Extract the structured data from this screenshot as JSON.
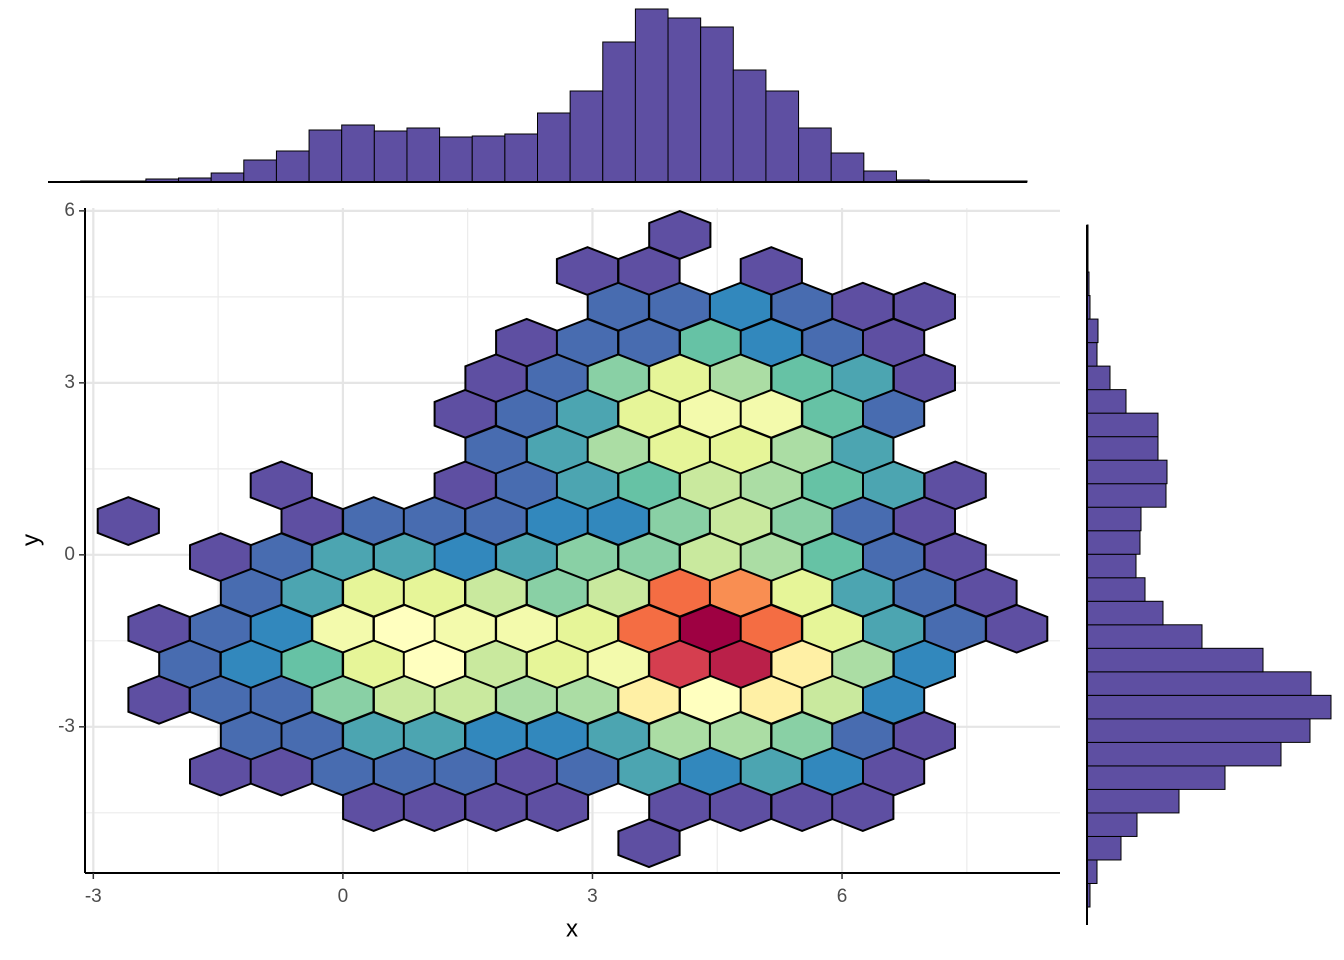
{
  "chart_data": {
    "type": "hexbin",
    "x_label": "x",
    "y_label": "y",
    "xlim": [
      -3.1,
      8.62
    ],
    "ylim": [
      -5.55,
      6.05
    ],
    "xticks": [
      -3,
      0,
      3,
      6
    ],
    "yticks": [
      -3,
      0,
      3,
      6
    ],
    "grid": true,
    "colors": [
      "#5e4fa2",
      "#3288bd",
      "#66c2a5",
      "#abdda4",
      "#e6f598",
      "#ffffbf",
      "#fee08b",
      "#fdae61",
      "#f46d43",
      "#d53e4f",
      "#9e0142"
    ],
    "count_range": [
      1,
      21
    ],
    "hexbins": [
      {
        "y": 5.58,
        "x": [
          4.05
        ],
        "counts": [
          1
        ]
      },
      {
        "y": 4.95,
        "x": [
          2.94,
          3.68,
          5.15
        ],
        "counts": [
          1,
          1,
          1
        ]
      },
      {
        "y": 4.33,
        "x": [
          3.31,
          4.05,
          4.78,
          5.52,
          6.25,
          6.99
        ],
        "counts": [
          2,
          2,
          3,
          2,
          1,
          1
        ]
      },
      {
        "y": 3.7,
        "x": [
          2.21,
          2.94,
          3.68,
          4.42,
          5.15,
          5.89,
          6.62
        ],
        "counts": [
          1,
          2,
          2,
          5,
          3,
          2,
          1
        ]
      },
      {
        "y": 3.08,
        "x": [
          1.84,
          2.58,
          3.31,
          4.05,
          4.78,
          5.52,
          6.25,
          6.99
        ],
        "counts": [
          1,
          2,
          6,
          9,
          7,
          5,
          4,
          1
        ]
      },
      {
        "y": 2.46,
        "x": [
          1.47,
          2.21,
          2.94,
          3.68,
          4.42,
          5.15,
          5.89,
          6.62
        ],
        "counts": [
          1,
          2,
          4,
          9,
          10,
          10,
          5,
          2
        ]
      },
      {
        "y": 1.83,
        "x": [
          1.84,
          2.58,
          3.31,
          4.05,
          4.78,
          5.52,
          6.25
        ],
        "counts": [
          2,
          4,
          7,
          9,
          9,
          7,
          4
        ]
      },
      {
        "y": 1.21,
        "x": [
          -0.74,
          1.47,
          2.21,
          2.94,
          3.68,
          4.42,
          5.15,
          5.89,
          6.62,
          7.36
        ],
        "counts": [
          1,
          1,
          2,
          4,
          5,
          8,
          7,
          5,
          4,
          1
        ]
      },
      {
        "y": 0.59,
        "x": [
          -2.58,
          -0.37,
          0.37,
          1.1,
          1.84,
          2.58,
          3.31,
          4.05,
          4.78,
          5.52,
          6.25,
          6.99
        ],
        "counts": [
          1,
          1,
          2,
          2,
          2,
          3,
          3,
          6,
          8,
          6,
          2,
          1
        ]
      },
      {
        "y": -0.04,
        "x": [
          -1.47,
          -0.74,
          0,
          0.74,
          1.47,
          2.21,
          2.94,
          3.68,
          4.42,
          5.15,
          5.89,
          6.62,
          7.36
        ],
        "counts": [
          1,
          2,
          4,
          4,
          3,
          4,
          6,
          6,
          8,
          7,
          5,
          2,
          1
        ]
      },
      {
        "y": -0.66,
        "x": [
          -1.1,
          -0.37,
          0.37,
          1.1,
          1.84,
          2.58,
          3.31,
          4.05,
          4.78,
          5.52,
          6.25,
          6.99,
          7.73
        ],
        "counts": [
          2,
          4,
          9,
          9,
          8,
          6,
          8,
          17,
          16,
          9,
          4,
          2,
          1
        ]
      },
      {
        "y": -1.29,
        "x": [
          -2.21,
          -1.47,
          -0.74,
          0,
          0.74,
          1.47,
          2.21,
          2.94,
          3.68,
          4.42,
          5.15,
          5.89,
          6.62,
          7.36,
          8.1
        ],
        "counts": [
          1,
          2,
          3,
          10,
          11,
          10,
          10,
          9,
          17,
          21,
          17,
          9,
          4,
          2,
          1
        ]
      },
      {
        "y": -1.91,
        "x": [
          -1.84,
          -1.1,
          -0.37,
          0.37,
          1.1,
          1.84,
          2.58,
          3.31,
          4.05,
          4.78,
          5.52,
          6.25,
          6.99
        ],
        "counts": [
          2,
          3,
          5,
          9,
          11,
          8,
          9,
          10,
          19,
          20,
          12,
          7,
          3
        ]
      },
      {
        "y": -2.53,
        "x": [
          -2.21,
          -1.47,
          -0.74,
          0,
          0.74,
          1.47,
          2.21,
          2.94,
          3.68,
          4.42,
          5.15,
          5.89,
          6.62
        ],
        "counts": [
          1,
          2,
          2,
          6,
          8,
          8,
          7,
          7,
          12,
          11,
          12,
          8,
          3
        ]
      },
      {
        "y": -3.16,
        "x": [
          -1.1,
          -0.37,
          0.37,
          1.1,
          1.84,
          2.58,
          3.31,
          4.05,
          4.78,
          5.52,
          6.25,
          6.99
        ],
        "counts": [
          2,
          2,
          4,
          4,
          3,
          3,
          4,
          7,
          7,
          6,
          2,
          1
        ]
      },
      {
        "y": -3.78,
        "x": [
          -1.47,
          -0.74,
          0,
          0.74,
          1.47,
          2.21,
          2.94,
          3.68,
          4.42,
          5.15,
          5.89,
          6.62
        ],
        "counts": [
          1,
          1,
          2,
          2,
          2,
          1,
          2,
          4,
          3,
          4,
          3,
          1
        ]
      },
      {
        "y": -4.4,
        "x": [
          0.37,
          1.1,
          1.84,
          2.58,
          4.05,
          4.78,
          5.52,
          6.25
        ],
        "counts": [
          1,
          1,
          1,
          1,
          1,
          1,
          1,
          1
        ]
      },
      {
        "y": -5.03,
        "x": [
          3.68
        ],
        "counts": [
          1
        ]
      }
    ],
    "x_histogram": {
      "type": "histogram",
      "color": "#5e4fa2",
      "xlim": [
        -3.6,
        8.4
      ],
      "ylim": [
        0,
        174
      ],
      "bins": [
        -3.2,
        -2.8,
        -2.4,
        -2,
        -1.6,
        -1.2,
        -0.8,
        -0.4,
        0,
        0.4,
        0.8,
        1.2,
        1.6,
        2,
        2.4,
        2.8,
        3.2,
        3.6,
        4,
        4.4,
        4.8,
        5.2,
        5.6,
        6,
        6.4,
        6.8,
        7.2,
        7.6,
        8,
        8.4
      ],
      "counts": [
        1,
        1,
        3,
        4,
        9,
        22,
        31,
        52,
        57,
        51,
        54,
        45,
        46,
        48,
        69,
        91,
        140,
        173,
        164,
        155,
        112,
        91,
        54,
        29,
        11,
        2,
        1,
        1,
        1
      ]
    },
    "y_histogram": {
      "type": "histogram",
      "orientation": "horizontal",
      "color": "#5e4fa2",
      "ylim": [
        -5.6,
        6.0
      ],
      "xlim": [
        0,
        245
      ],
      "bins": [
        -5.6,
        -5.2,
        -4.8,
        -4.4,
        -4,
        -3.6,
        -3.2,
        -2.8,
        -2.4,
        -2,
        -1.6,
        -1.2,
        -0.8,
        -0.4,
        0,
        0.4,
        0.8,
        1.2,
        1.6,
        2,
        2.4,
        2.8,
        3.2,
        3.6,
        4,
        4.4,
        4.8,
        5.2,
        5.6,
        6
      ],
      "counts": [
        3,
        10,
        34,
        50,
        92,
        138,
        194,
        223,
        244,
        224,
        176,
        115,
        76,
        58,
        49,
        53,
        54,
        79,
        80,
        71,
        71,
        39,
        23,
        10,
        11,
        3,
        2,
        1,
        1
      ]
    }
  }
}
